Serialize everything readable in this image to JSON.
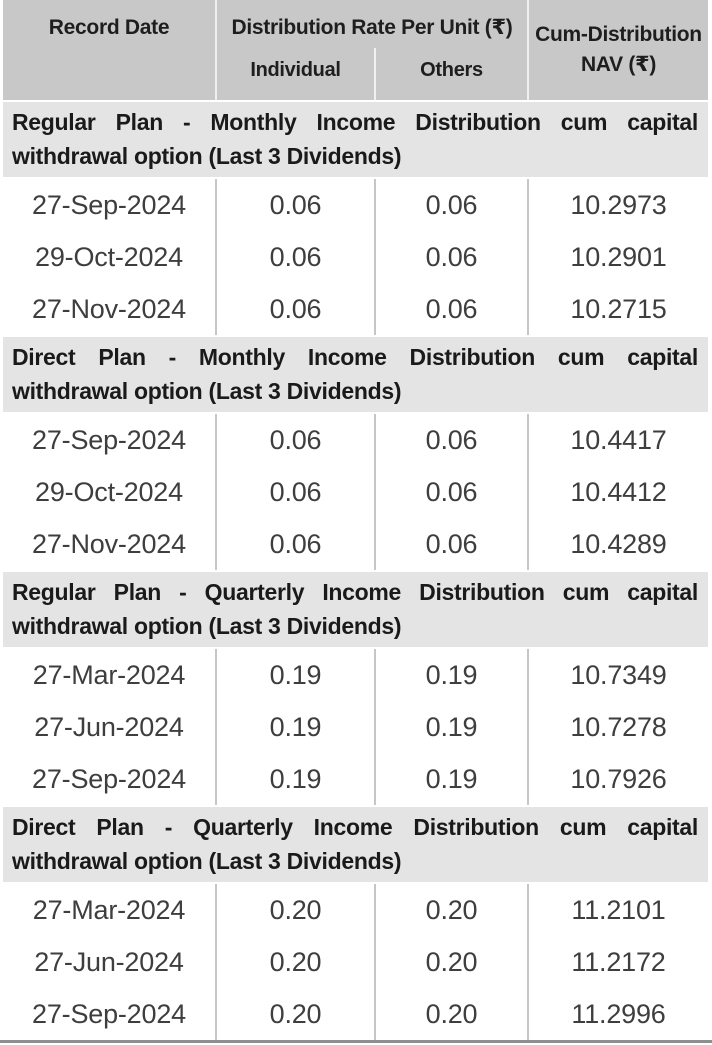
{
  "header": {
    "record_date": "Record Date",
    "dist_rate_group": "Distribution Rate Per Unit (₹)",
    "individual": "Individual",
    "others": "Others",
    "cum_nav": "Cum-Distribution NAV (₹)"
  },
  "sections": [
    {
      "title": "Regular Plan - Monthly Income Distribution cum capital withdrawal option (Last 3 Dividends)",
      "rows": [
        {
          "date": "27-Sep-2024",
          "individual": "0.06",
          "others": "0.06",
          "nav": "10.2973"
        },
        {
          "date": "29-Oct-2024",
          "individual": "0.06",
          "others": "0.06",
          "nav": "10.2901"
        },
        {
          "date": "27-Nov-2024",
          "individual": "0.06",
          "others": "0.06",
          "nav": "10.2715"
        }
      ]
    },
    {
      "title": "Direct Plan - Monthly Income Distribution cum capital withdrawal option (Last 3 Dividends)",
      "rows": [
        {
          "date": "27-Sep-2024",
          "individual": "0.06",
          "others": "0.06",
          "nav": "10.4417"
        },
        {
          "date": "29-Oct-2024",
          "individual": "0.06",
          "others": "0.06",
          "nav": "10.4412"
        },
        {
          "date": "27-Nov-2024",
          "individual": "0.06",
          "others": "0.06",
          "nav": "10.4289"
        }
      ]
    },
    {
      "title": "Regular Plan - Quarterly Income Distribution cum capital withdrawal option (Last 3 Dividends)",
      "rows": [
        {
          "date": "27-Mar-2024",
          "individual": "0.19",
          "others": "0.19",
          "nav": "10.7349"
        },
        {
          "date": "27-Jun-2024",
          "individual": "0.19",
          "others": "0.19",
          "nav": "10.7278"
        },
        {
          "date": "27-Sep-2024",
          "individual": "0.19",
          "others": "0.19",
          "nav": "10.7926"
        }
      ]
    },
    {
      "title": "Direct Plan - Quarterly Income Distribution cum capital withdrawal option (Last 3 Dividends)",
      "rows": [
        {
          "date": "27-Mar-2024",
          "individual": "0.20",
          "others": "0.20",
          "nav": "11.2101"
        },
        {
          "date": "27-Jun-2024",
          "individual": "0.20",
          "others": "0.20",
          "nav": "11.2172"
        },
        {
          "date": "27-Sep-2024",
          "individual": "0.20",
          "others": "0.20",
          "nav": "11.2996"
        }
      ]
    }
  ],
  "colors": {
    "header_bg": "#c8c8c8",
    "section_band_bg": "#e4e4e4",
    "row_separator": "#c6c6c6",
    "header_separator": "#f0f0f0",
    "bottom_rule": "#8f8f8f",
    "header_text": "#1e1e1e",
    "data_text": "#3e3e3e"
  }
}
